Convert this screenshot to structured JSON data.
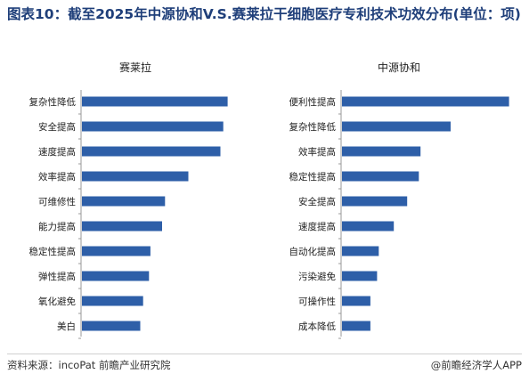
{
  "title": "图表10：截至2025年中源协和V.S.赛莱拉干细胞医疗专利技术功效分布(单位：项)",
  "source": "资料来源：incoPat 前瞻产业研究院",
  "brand": "@前瞻经济学人APP",
  "colors": {
    "bar": "#2e5fa8",
    "title": "#1f3f7a"
  },
  "chart_data": [
    {
      "type": "bar",
      "orientation": "horizontal",
      "title": "赛莱拉",
      "categories": [
        "复杂性降低",
        "安全提高",
        "速度提高",
        "效率提高",
        "可维修性",
        "能力提高",
        "稳定性提高",
        "弹性提高",
        "氧化避免",
        "美白"
      ],
      "values": [
        100,
        97,
        95,
        73,
        57,
        55,
        47,
        46,
        42,
        40
      ],
      "xlim": [
        0,
        110
      ]
    },
    {
      "type": "bar",
      "orientation": "horizontal",
      "title": "中源协和",
      "categories": [
        "便利性提高",
        "复杂性降低",
        "效率提高",
        "稳定性提高",
        "安全提高",
        "速度提高",
        "自动化提高",
        "污染避免",
        "可操作性",
        "成本降低"
      ],
      "values": [
        100,
        65,
        47,
        46,
        39,
        31,
        22,
        21,
        17,
        17
      ],
      "xlim": [
        0,
        105
      ]
    }
  ]
}
